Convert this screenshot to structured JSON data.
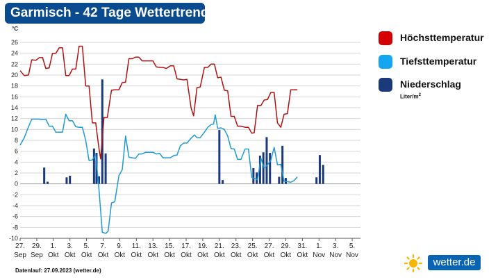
{
  "header": {
    "title": "Garmisch - 42 Tage Wettertrend"
  },
  "footer": {
    "run_label": "Datenlauf: 27.09.2023 (wetter.de)"
  },
  "logo": {
    "text": "wetter.de"
  },
  "legend": {
    "items": [
      {
        "label": "Höchsttemperatur",
        "color": "#d40000"
      },
      {
        "label": "Tiefsttemperatur",
        "color": "#14a6f0"
      },
      {
        "label": "Niederschlag",
        "color": "#1a3a7c"
      }
    ],
    "unit_prefix": "Liter/m",
    "unit_sup": "2"
  },
  "chart_data": {
    "type": "line",
    "ylabel": "°C",
    "ylim": [
      -10,
      26
    ],
    "yticks": [
      -10,
      -8,
      -6,
      -4,
      -2,
      0,
      2,
      4,
      6,
      8,
      10,
      12,
      14,
      16,
      18,
      20,
      22,
      24,
      26
    ],
    "grid": true,
    "legend_position": "right",
    "x_tick_labels": [
      {
        "day": 0,
        "line1": "27.",
        "line2": "Sep"
      },
      {
        "day": 2,
        "line1": "29.",
        "line2": "Sep"
      },
      {
        "day": 4,
        "line1": "1.",
        "line2": "Okt"
      },
      {
        "day": 6,
        "line1": "3.",
        "line2": "Okt"
      },
      {
        "day": 8,
        "line1": "5.",
        "line2": "Okt"
      },
      {
        "day": 10,
        "line1": "7.",
        "line2": "Okt"
      },
      {
        "day": 12,
        "line1": "9.",
        "line2": "Okt"
      },
      {
        "day": 14,
        "line1": "11.",
        "line2": "Okt"
      },
      {
        "day": 16,
        "line1": "13.",
        "line2": "Okt"
      },
      {
        "day": 18,
        "line1": "15.",
        "line2": "Okt"
      },
      {
        "day": 20,
        "line1": "17.",
        "line2": "Okt"
      },
      {
        "day": 22,
        "line1": "19.",
        "line2": "Okt"
      },
      {
        "day": 24,
        "line1": "21.",
        "line2": "Okt"
      },
      {
        "day": 26,
        "line1": "23.",
        "line2": "Okt"
      },
      {
        "day": 28,
        "line1": "25.",
        "line2": "Okt"
      },
      {
        "day": 30,
        "line1": "27.",
        "line2": "Okt"
      },
      {
        "day": 32,
        "line1": "29.",
        "line2": "Okt"
      },
      {
        "day": 34,
        "line1": "31.",
        "line2": "Okt"
      },
      {
        "day": 36,
        "line1": "1.",
        "line2": "Nov"
      },
      {
        "day": 38,
        "line1": "3.",
        "line2": "Nov"
      },
      {
        "day": 40,
        "line1": "5.",
        "line2": "Nov"
      }
    ],
    "series": [
      {
        "name": "Höchsttemperatur",
        "color": "#b01010",
        "points": [
          [
            0.0,
            20.8
          ],
          [
            0.5,
            19.9
          ],
          [
            1.0,
            20.0
          ],
          [
            1.4,
            22.8
          ],
          [
            1.9,
            22.7
          ],
          [
            2.3,
            23.2
          ],
          [
            2.7,
            23.2
          ],
          [
            3.1,
            21.2
          ],
          [
            3.5,
            21.3
          ],
          [
            3.9,
            24.0
          ],
          [
            4.3,
            24.0
          ],
          [
            4.7,
            25.0
          ],
          [
            5.1,
            25.0
          ],
          [
            5.5,
            19.9
          ],
          [
            5.9,
            19.9
          ],
          [
            6.3,
            21.1
          ],
          [
            6.7,
            21.1
          ],
          [
            7.1,
            25.3
          ],
          [
            7.5,
            25.3
          ],
          [
            7.9,
            18.0
          ],
          [
            8.3,
            18.0
          ],
          [
            8.7,
            11.2
          ],
          [
            9.1,
            11.2
          ],
          [
            9.5,
            6.5
          ],
          [
            9.7,
            4.6
          ],
          [
            10.1,
            12.2
          ],
          [
            10.5,
            12.2
          ],
          [
            11.0,
            17.2
          ],
          [
            11.4,
            17.3
          ],
          [
            11.9,
            17.3
          ],
          [
            12.3,
            18.6
          ],
          [
            12.7,
            18.7
          ],
          [
            13.1,
            23.0
          ],
          [
            13.5,
            23.0
          ],
          [
            13.9,
            23.3
          ],
          [
            14.3,
            23.3
          ],
          [
            14.7,
            22.6
          ],
          [
            15.1,
            22.6
          ],
          [
            15.5,
            22.6
          ],
          [
            16.0,
            22.6
          ],
          [
            16.4,
            21.5
          ],
          [
            16.8,
            21.4
          ],
          [
            17.2,
            21.4
          ],
          [
            17.6,
            21.2
          ],
          [
            18.1,
            21.7
          ],
          [
            18.5,
            21.7
          ],
          [
            18.9,
            19.3
          ],
          [
            19.3,
            19.2
          ],
          [
            19.7,
            19.1
          ],
          [
            20.1,
            19.2
          ],
          [
            20.6,
            13.9
          ],
          [
            20.9,
            12.5
          ],
          [
            21.3,
            17.7
          ],
          [
            21.7,
            17.8
          ],
          [
            22.2,
            21.4
          ],
          [
            22.6,
            21.4
          ],
          [
            23.0,
            22.0
          ],
          [
            23.4,
            22.0
          ],
          [
            23.8,
            19.5
          ],
          [
            24.2,
            19.6
          ],
          [
            24.6,
            17.2
          ],
          [
            25.0,
            17.1
          ],
          [
            25.4,
            12.4
          ],
          [
            25.8,
            12.4
          ],
          [
            26.2,
            10.6
          ],
          [
            26.6,
            10.6
          ],
          [
            27.1,
            10.4
          ],
          [
            27.5,
            10.4
          ],
          [
            27.9,
            9.3
          ],
          [
            28.2,
            9.4
          ],
          [
            28.6,
            14.4
          ],
          [
            29.0,
            14.4
          ],
          [
            29.4,
            15.4
          ],
          [
            29.8,
            15.5
          ],
          [
            30.2,
            16.8
          ],
          [
            30.6,
            16.8
          ],
          [
            31.0,
            11.2
          ],
          [
            31.4,
            10.4
          ],
          [
            31.8,
            12.8
          ],
          [
            32.2,
            12.9
          ],
          [
            32.6,
            17.3
          ],
          [
            33.0,
            17.3
          ],
          [
            33.4,
            17.3
          ]
        ]
      },
      {
        "name": "Tiefsttemperatur",
        "color": "#1e9ad6",
        "points": [
          [
            0.0,
            7.1
          ],
          [
            0.5,
            8.5
          ],
          [
            1.0,
            10.5
          ],
          [
            1.4,
            11.9
          ],
          [
            1.9,
            11.9
          ],
          [
            2.3,
            11.9
          ],
          [
            2.7,
            11.8
          ],
          [
            3.1,
            11.9
          ],
          [
            3.5,
            10.6
          ],
          [
            3.9,
            10.6
          ],
          [
            4.3,
            9.5
          ],
          [
            4.7,
            9.5
          ],
          [
            5.1,
            9.5
          ],
          [
            5.5,
            12.8
          ],
          [
            5.9,
            11.6
          ],
          [
            6.3,
            11.6
          ],
          [
            6.7,
            10.5
          ],
          [
            7.1,
            10.4
          ],
          [
            7.5,
            10.4
          ],
          [
            7.9,
            8.0
          ],
          [
            8.3,
            4.3
          ],
          [
            8.7,
            4.4
          ],
          [
            9.1,
            5.4
          ],
          [
            9.5,
            -1.0
          ],
          [
            9.9,
            -8.9
          ],
          [
            10.3,
            -9.1
          ],
          [
            10.6,
            -8.7
          ],
          [
            11.0,
            -3.5
          ],
          [
            11.4,
            -3.3
          ],
          [
            11.9,
            1.5
          ],
          [
            12.3,
            2.6
          ],
          [
            12.7,
            8.8
          ],
          [
            13.1,
            4.9
          ],
          [
            13.5,
            4.8
          ],
          [
            13.9,
            4.7
          ],
          [
            14.3,
            5.5
          ],
          [
            14.7,
            5.5
          ],
          [
            15.1,
            5.8
          ],
          [
            15.5,
            5.8
          ],
          [
            16.0,
            5.8
          ],
          [
            16.4,
            5.5
          ],
          [
            16.8,
            5.6
          ],
          [
            17.2,
            4.8
          ],
          [
            17.6,
            4.8
          ],
          [
            18.1,
            4.8
          ],
          [
            18.5,
            5.2
          ],
          [
            18.9,
            5.3
          ],
          [
            19.3,
            7.0
          ],
          [
            19.7,
            7.5
          ],
          [
            20.1,
            7.5
          ],
          [
            20.6,
            8.4
          ],
          [
            21.0,
            9.0
          ],
          [
            21.3,
            8.5
          ],
          [
            21.7,
            8.5
          ],
          [
            22.2,
            9.5
          ],
          [
            22.6,
            10.4
          ],
          [
            23.0,
            10.9
          ],
          [
            23.3,
            11.0
          ],
          [
            23.5,
            12.7
          ],
          [
            23.8,
            10.2
          ],
          [
            24.2,
            10.3
          ],
          [
            24.6,
            10.0
          ],
          [
            25.0,
            8.8
          ],
          [
            25.4,
            6.5
          ],
          [
            25.8,
            6.4
          ],
          [
            26.2,
            4.5
          ],
          [
            26.6,
            4.5
          ],
          [
            27.1,
            6.4
          ],
          [
            27.5,
            6.4
          ],
          [
            27.9,
            1.2
          ],
          [
            28.2,
            1.0
          ],
          [
            28.6,
            0.8
          ],
          [
            29.0,
            4.7
          ],
          [
            29.4,
            2.9
          ],
          [
            29.8,
            3.5
          ],
          [
            30.2,
            4.3
          ],
          [
            30.6,
            6.7
          ],
          [
            31.0,
            3.5
          ],
          [
            31.4,
            3.6
          ],
          [
            31.8,
            0.5
          ],
          [
            32.2,
            0.4
          ],
          [
            32.6,
            0.3
          ],
          [
            33.0,
            0.6
          ],
          [
            33.4,
            1.3
          ]
        ]
      },
      {
        "name": "Niederschlag",
        "type": "bar",
        "color": "#1a3a7c",
        "points": [
          [
            2.9,
            3.0
          ],
          [
            3.3,
            0.4
          ],
          [
            5.6,
            1.2
          ],
          [
            6.0,
            1.5
          ],
          [
            8.9,
            6.5
          ],
          [
            9.2,
            5.7
          ],
          [
            9.5,
            1.4
          ],
          [
            9.9,
            19.2
          ],
          [
            10.3,
            5.6
          ],
          [
            24.0,
            9.9
          ],
          [
            24.4,
            0.7
          ],
          [
            28.1,
            2.9
          ],
          [
            28.5,
            2.1
          ],
          [
            28.9,
            5.2
          ],
          [
            29.3,
            5.8
          ],
          [
            29.7,
            8.6
          ],
          [
            30.1,
            5.7
          ],
          [
            31.2,
            1.3
          ],
          [
            31.6,
            7.0
          ],
          [
            32.0,
            1.1
          ],
          [
            35.7,
            1.2
          ],
          [
            36.1,
            5.3
          ],
          [
            36.5,
            3.5
          ]
        ]
      }
    ]
  }
}
